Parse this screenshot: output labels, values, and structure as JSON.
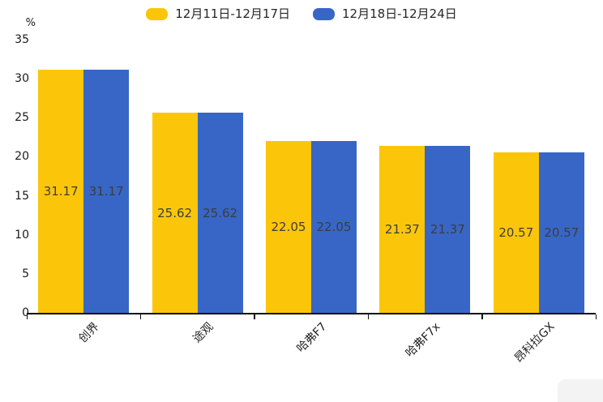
{
  "chart_data": {
    "type": "bar",
    "title": "",
    "unit_label": "%",
    "categories": [
      "创界",
      "途观",
      "哈弗F7",
      "哈弗F7x",
      "昂科拉GX"
    ],
    "series": [
      {
        "name": "12月11日-12月17日",
        "color": "#FBC609",
        "values": [
          31.17,
          25.62,
          22.05,
          21.37,
          20.57
        ]
      },
      {
        "name": "12月18日-12月24日",
        "color": "#3766C6",
        "values": [
          31.17,
          25.62,
          22.05,
          21.37,
          20.57
        ]
      }
    ],
    "value_label_format": "2-decimals",
    "ylim": [
      0,
      35
    ],
    "yticks": [
      0,
      5,
      10,
      15,
      20,
      25,
      30,
      35
    ],
    "grid": false,
    "legend_position": "top",
    "colors": {
      "axis": "#111111",
      "tick_text": "#1a1a1a",
      "bar_value_text": "#3d3d3d"
    }
  }
}
